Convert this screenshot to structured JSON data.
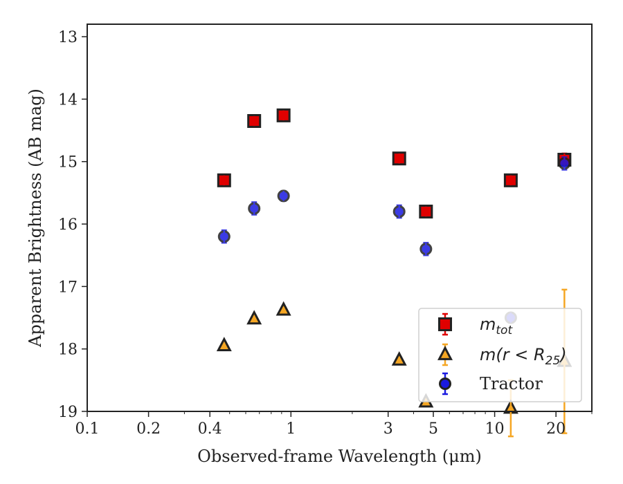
{
  "chart_data": {
    "type": "scatter",
    "xlabel": "Observed-frame Wavelength (μm)",
    "ylabel": "Apparent Brightness (AB mag)",
    "x_scale": "log",
    "y_inverted": true,
    "xlim": [
      0.1,
      30
    ],
    "ylim": [
      19,
      12.8
    ],
    "x_ticks": [
      0.1,
      0.2,
      0.4,
      1,
      3,
      5,
      10,
      20
    ],
    "x_tick_labels": [
      "0.1",
      "0.2",
      "0.4",
      "1",
      "3",
      "5",
      "10",
      "20"
    ],
    "y_ticks": [
      13,
      14,
      15,
      16,
      17,
      18,
      19
    ],
    "y_tick_labels": [
      "13",
      "14",
      "15",
      "16",
      "17",
      "18",
      "19"
    ],
    "grid": false,
    "legend_position": "lower-right",
    "series": [
      {
        "name": "m_tot",
        "legend_main": "m",
        "legend_sub": "tot",
        "marker": "square",
        "color": "#e00000",
        "edge": "#222222",
        "points": [
          {
            "x": 0.47,
            "y": 15.3,
            "err": 0.08
          },
          {
            "x": 0.66,
            "y": 14.35,
            "err": 0.08
          },
          {
            "x": 0.92,
            "y": 14.26,
            "err": 0.08
          },
          {
            "x": 3.4,
            "y": 14.95,
            "err": 0.08
          },
          {
            "x": 4.6,
            "y": 15.8,
            "err": 0.08
          },
          {
            "x": 12.0,
            "y": 15.3,
            "err": 0.08
          },
          {
            "x": 22.0,
            "y": 14.97,
            "err": 0.1
          }
        ]
      },
      {
        "name": "m(r<R_25)",
        "legend_main": "m(r < R",
        "legend_sub": "25",
        "legend_tail": ")",
        "marker": "triangle",
        "color": "#f5a623",
        "edge": "#222222",
        "points": [
          {
            "x": 0.47,
            "y": 17.95,
            "err": 0.05
          },
          {
            "x": 0.66,
            "y": 17.52,
            "err": 0.05
          },
          {
            "x": 0.92,
            "y": 17.38,
            "err": 0.05
          },
          {
            "x": 3.4,
            "y": 18.18,
            "err": 0.05
          },
          {
            "x": 4.6,
            "y": 18.85,
            "err": 0.05
          },
          {
            "x": 12.0,
            "y": 18.95,
            "err": 0.45
          },
          {
            "x": 22.0,
            "y": 18.2,
            "err": 1.15
          }
        ]
      },
      {
        "name": "Tractor",
        "legend_main": "Tractor",
        "marker": "circle",
        "color": "#1a1ae0",
        "edge": "#222222",
        "points": [
          {
            "x": 0.47,
            "y": 16.2,
            "err": 0.1
          },
          {
            "x": 0.66,
            "y": 15.75,
            "err": 0.1
          },
          {
            "x": 0.92,
            "y": 15.55,
            "err": 0.08
          },
          {
            "x": 3.4,
            "y": 15.8,
            "err": 0.1
          },
          {
            "x": 4.6,
            "y": 16.4,
            "err": 0.1
          },
          {
            "x": 12.0,
            "y": 17.5,
            "err": 0.08
          },
          {
            "x": 22.0,
            "y": 15.03,
            "err": 0.1
          }
        ]
      }
    ]
  }
}
